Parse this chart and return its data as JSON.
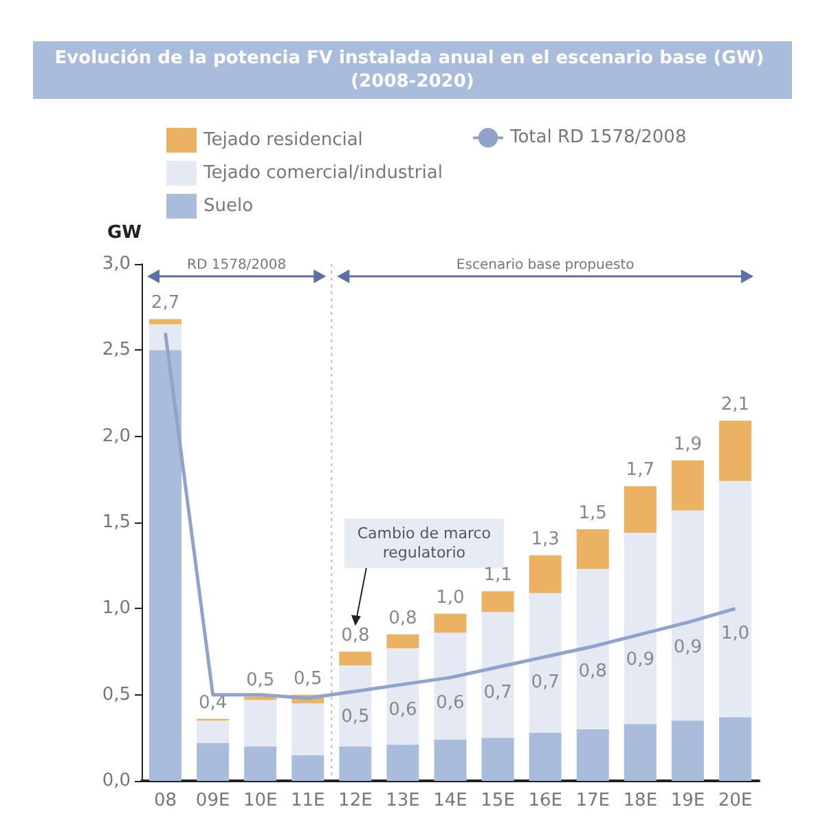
{
  "chart_data": {
    "type": "bar",
    "title": "Evolución de la potencia FV instalada anual en el escenario base (GW) (2008-2020)",
    "ylabel": "GW",
    "stacked": true,
    "legend": "top left",
    "grid": false,
    "categories": [
      "08",
      "09E",
      "10E",
      "11E",
      "12E",
      "13E",
      "14E",
      "15E",
      "16E",
      "17E",
      "18E",
      "19E",
      "20E"
    ],
    "series": [
      {
        "name": "Suelo",
        "color": "#a9bcdc",
        "values": [
          2.5,
          0.22,
          0.2,
          0.15,
          0.2,
          0.21,
          0.24,
          0.25,
          0.28,
          0.3,
          0.33,
          0.35,
          0.37
        ]
      },
      {
        "name": "Tejado comercial/industrial",
        "color": "#e4e9f3",
        "values": [
          0.15,
          0.13,
          0.27,
          0.3,
          0.47,
          0.56,
          0.62,
          0.73,
          0.81,
          0.93,
          1.11,
          1.22,
          1.37
        ]
      },
      {
        "name": "Tejado residencial",
        "color": "#eab262",
        "values": [
          0.03,
          0.01,
          0.02,
          0.05,
          0.08,
          0.08,
          0.11,
          0.12,
          0.22,
          0.23,
          0.27,
          0.29,
          0.35
        ]
      },
      {
        "name": "Total RD 1578/2008",
        "type": "line",
        "color": "#8fa3cc",
        "marker": "none",
        "values": [
          2.6,
          0.5,
          0.5,
          0.48,
          0.52,
          0.56,
          0.6,
          0.66,
          0.72,
          0.78,
          0.85,
          0.92,
          1.0
        ],
        "value_labels": [
          null,
          null,
          null,
          null,
          "0,5",
          "0,6",
          "0,6",
          "0,7",
          "0,7",
          "0,8",
          "0,9",
          "0,9",
          "1,0"
        ]
      }
    ],
    "totals": [
      "2,7",
      "0,4",
      "0,5",
      "0,5",
      "0,8",
      "0,8",
      "1,0",
      "1,1",
      "1,3",
      "1,5",
      "1,7",
      "1,9",
      "2,1"
    ],
    "ylim": [
      0,
      3
    ],
    "yticks": [
      {
        "value": 0,
        "label": "0,0"
      },
      {
        "value": 0.5,
        "label": "0,5"
      },
      {
        "value": 1,
        "label": "1,0"
      },
      {
        "value": 1.5,
        "label": "1,5"
      },
      {
        "value": 2,
        "label": "2,0"
      },
      {
        "value": 2.5,
        "label": "2,5"
      },
      {
        "value": 3,
        "label": "3,0"
      }
    ],
    "annotations": [
      "RD 1578/2008",
      "Escenario base propuesto",
      "Cambio de marco regulatorio"
    ]
  }
}
